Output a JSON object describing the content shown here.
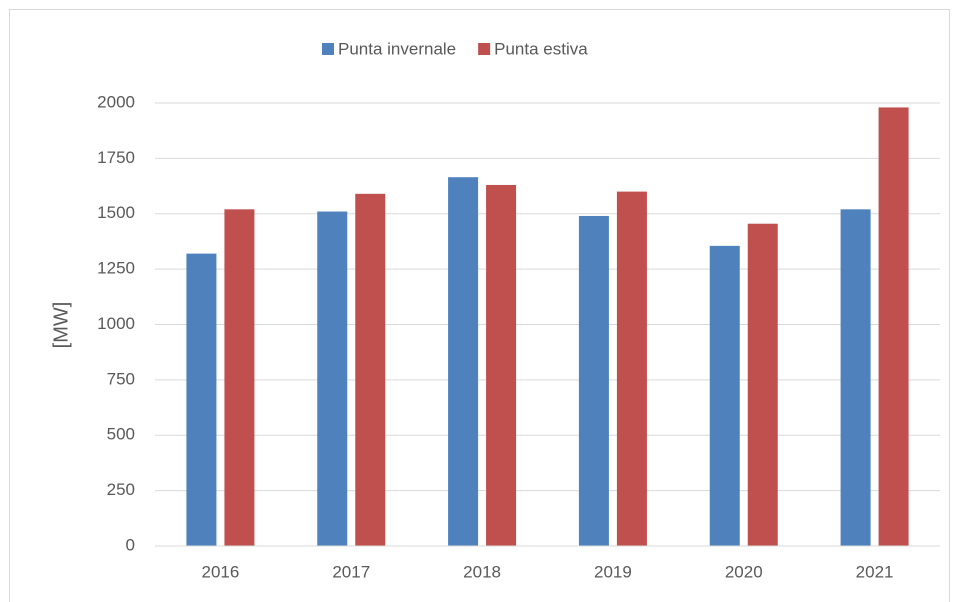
{
  "chart_data": {
    "type": "bar",
    "ylabel": "[MW]",
    "categories": [
      "2016",
      "2017",
      "2018",
      "2019",
      "2020",
      "2021"
    ],
    "series": [
      {
        "name": "Punta invernale",
        "color": "#4f81bd",
        "values": [
          1320,
          1510,
          1665,
          1490,
          1355,
          1520
        ]
      },
      {
        "name": "Punta estiva",
        "color": "#c0504d",
        "values": [
          1520,
          1590,
          1630,
          1600,
          1455,
          1980
        ]
      }
    ],
    "ylim": [
      0,
      2000
    ],
    "yticks": [
      0,
      250,
      500,
      750,
      1000,
      1250,
      1500,
      1750,
      2000
    ],
    "grid": true,
    "legend": "top"
  }
}
